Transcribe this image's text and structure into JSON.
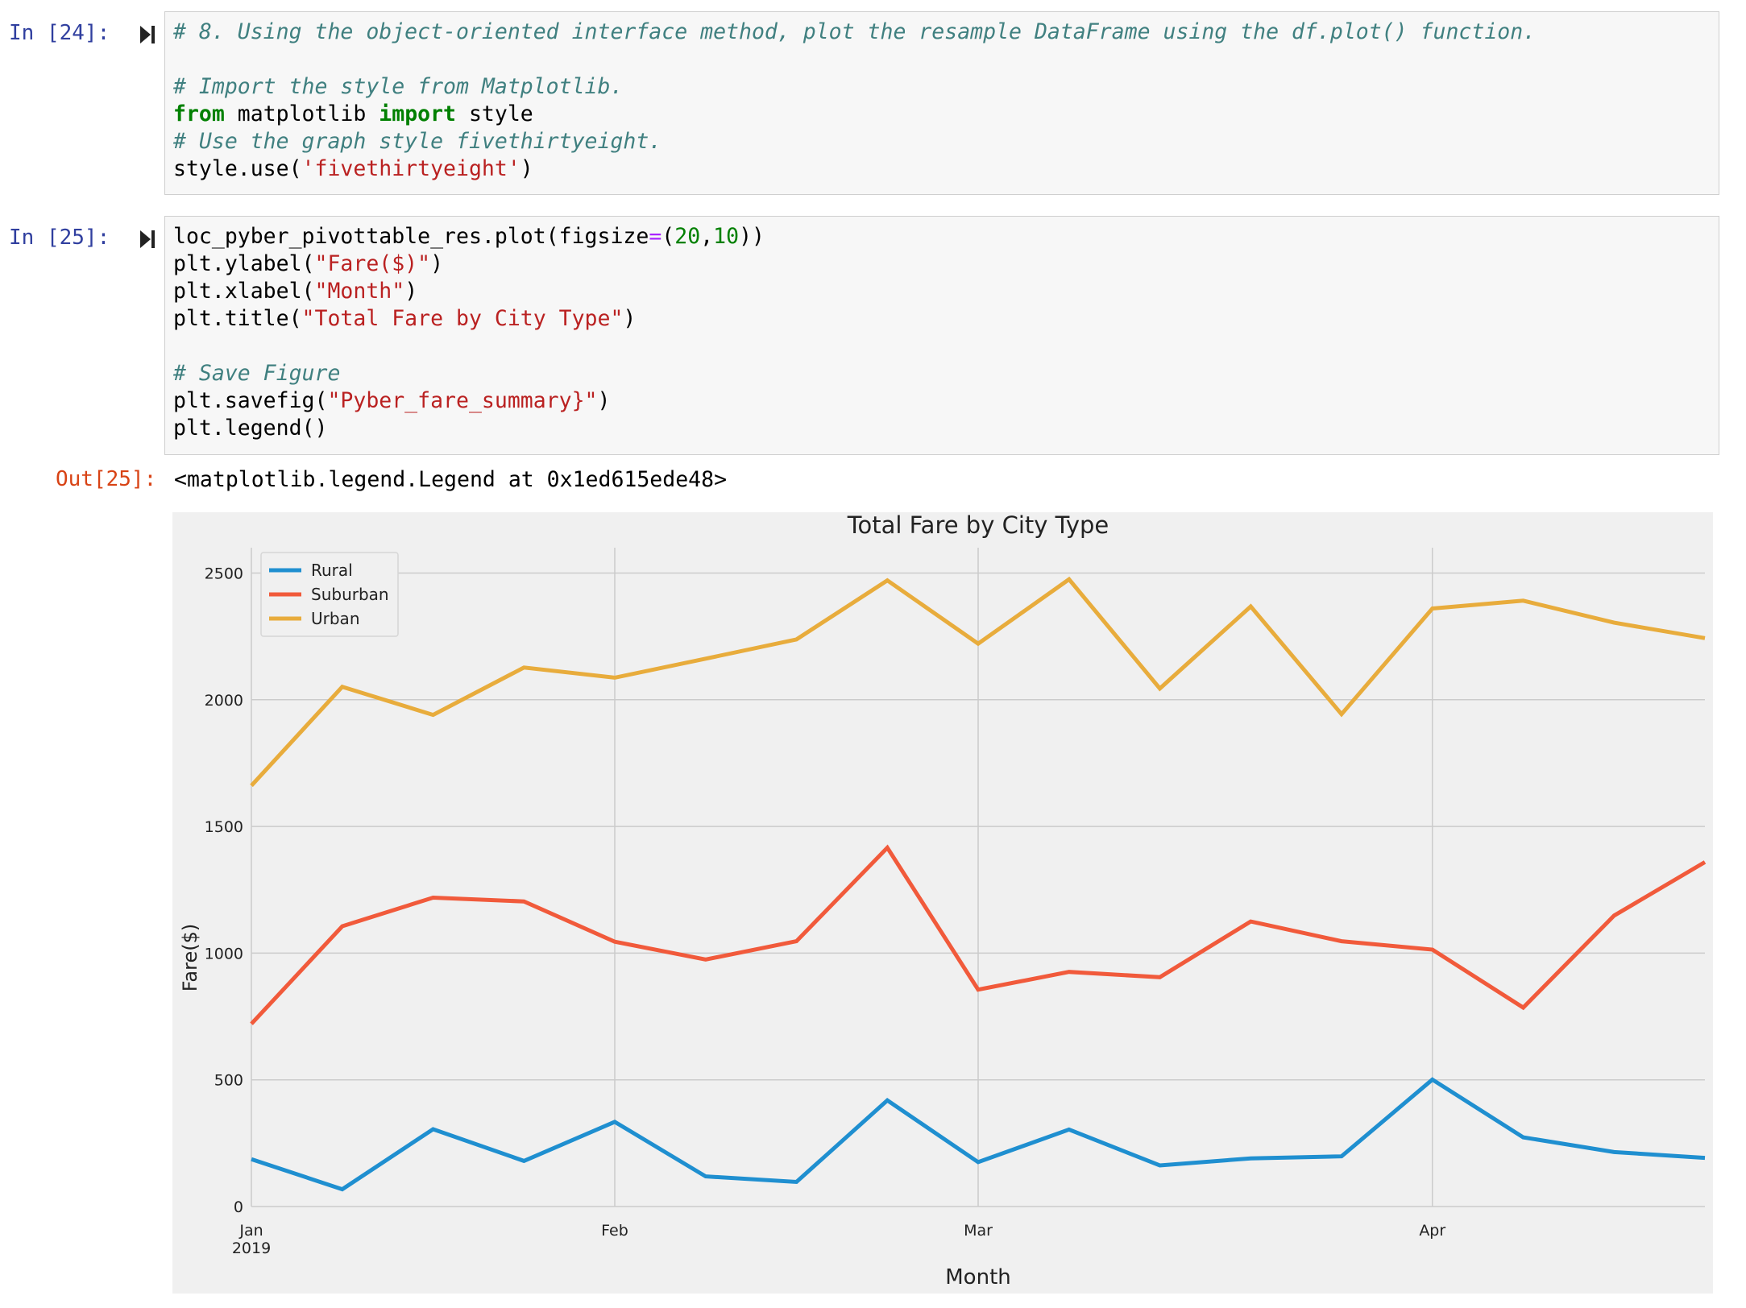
{
  "cells": {
    "cell24": {
      "prompt": "In [24]:",
      "lines": [
        [
          {
            "t": "# 8. Using the object-oriented interface method, plot the resample DataFrame using the df.plot() function.",
            "c": "comment"
          }
        ],
        [],
        [
          {
            "t": "# Import the style from Matplotlib.",
            "c": "comment"
          }
        ],
        [
          {
            "t": "from",
            "c": "kw"
          },
          {
            "t": " matplotlib ",
            "c": ""
          },
          {
            "t": "import",
            "c": "kw"
          },
          {
            "t": " style",
            "c": ""
          }
        ],
        [
          {
            "t": "# Use the graph style fivethirtyeight.",
            "c": "comment"
          }
        ],
        [
          {
            "t": "style.use(",
            "c": ""
          },
          {
            "t": "'fivethirtyeight'",
            "c": "str"
          },
          {
            "t": ")",
            "c": ""
          }
        ]
      ]
    },
    "cell25": {
      "prompt": "In [25]:",
      "lines": [
        [
          {
            "t": "loc_pyber_pivottable_res.plot(figsize",
            "c": ""
          },
          {
            "t": "=",
            "c": "op"
          },
          {
            "t": "(",
            "c": ""
          },
          {
            "t": "20",
            "c": "num"
          },
          {
            "t": ",",
            "c": ""
          },
          {
            "t": "10",
            "c": "num"
          },
          {
            "t": "))",
            "c": ""
          }
        ],
        [
          {
            "t": "plt.ylabel(",
            "c": ""
          },
          {
            "t": "\"Fare($)\"",
            "c": "str"
          },
          {
            "t": ")",
            "c": ""
          }
        ],
        [
          {
            "t": "plt.xlabel(",
            "c": ""
          },
          {
            "t": "\"Month\"",
            "c": "str"
          },
          {
            "t": ")",
            "c": ""
          }
        ],
        [
          {
            "t": "plt.title(",
            "c": ""
          },
          {
            "t": "\"Total Fare by City Type\"",
            "c": "str"
          },
          {
            "t": ")",
            "c": ""
          }
        ],
        [],
        [
          {
            "t": "# Save Figure",
            "c": "comment"
          }
        ],
        [
          {
            "t": "plt.savefig(",
            "c": ""
          },
          {
            "t": "\"Pyber_fare_summary}\"",
            "c": "str"
          },
          {
            "t": ")",
            "c": ""
          }
        ],
        [
          {
            "t": "plt.legend()",
            "c": ""
          }
        ]
      ]
    },
    "out25": {
      "prompt": "Out[25]:",
      "text": "<matplotlib.legend.Legend at 0x1ed615ede48>"
    }
  },
  "colors": {
    "rural": "#1f8fd0",
    "suburban": "#f15a3b",
    "urban": "#e8ac3c",
    "plot_bg": "#f0f0f0",
    "grid": "#cbcbcb"
  },
  "chart_data": {
    "type": "line",
    "title": "Total Fare by City Type",
    "xlabel": "Month",
    "ylabel": "Fare($)",
    "ylim": [
      0,
      2600
    ],
    "yticks": [
      0,
      500,
      1000,
      1500,
      2000,
      2500
    ],
    "x": [
      "2019-01-06",
      "2019-01-13",
      "2019-01-20",
      "2019-01-27",
      "2019-02-03",
      "2019-02-10",
      "2019-02-17",
      "2019-02-24",
      "2019-03-03",
      "2019-03-10",
      "2019-03-17",
      "2019-03-24",
      "2019-03-31",
      "2019-04-07",
      "2019-04-14",
      "2019-04-21",
      "2019-04-28"
    ],
    "xlim": [
      "2019-01-06",
      "2019-04-28"
    ],
    "xticks": [
      {
        "date": "2019-01-06",
        "label": "Jan",
        "sublabel": "2019"
      },
      {
        "date": "2019-02-03",
        "label": "Feb",
        "sublabel": ""
      },
      {
        "date": "2019-03-03",
        "label": "Mar",
        "sublabel": ""
      },
      {
        "date": "2019-04-07",
        "label": "Apr",
        "sublabel": ""
      }
    ],
    "grid": true,
    "legend_position": "top-left",
    "series": [
      {
        "name": "Rural",
        "color_key": "rural",
        "values": [
          187,
          68,
          305,
          180,
          334,
          119,
          97,
          419,
          175,
          304,
          162,
          190,
          198,
          501,
          273,
          215,
          192
        ]
      },
      {
        "name": "Suburban",
        "color_key": "suburban",
        "values": [
          721,
          1106,
          1219,
          1204,
          1045,
          975,
          1047,
          1416,
          856,
          926,
          905,
          1125,
          1047,
          1014,
          785,
          1148,
          1359
        ]
      },
      {
        "name": "Urban",
        "color_key": "urban",
        "values": [
          1661,
          2051,
          1940,
          2127,
          2087,
          2162,
          2238,
          2471,
          2221,
          2475,
          2044,
          2368,
          1943,
          2360,
          2391,
          2304,
          2243
        ]
      }
    ]
  }
}
